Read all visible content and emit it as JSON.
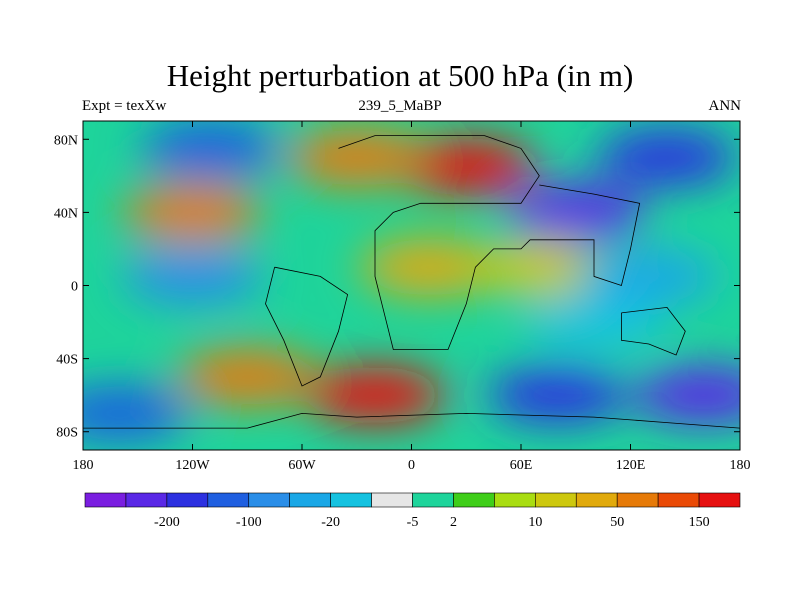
{
  "chart_data": {
    "type": "heatmap",
    "title": "Height perturbation at 500 hPa (in m)",
    "subtitle_left": "Expt = texXw",
    "subtitle_center": "239_5_MaBP",
    "subtitle_right": "ANN",
    "x_range": [
      -180,
      180
    ],
    "y_range": [
      -90,
      90
    ],
    "x_ticks": [
      {
        "value": -180,
        "label": "180"
      },
      {
        "value": -120,
        "label": "120W"
      },
      {
        "value": -60,
        "label": "60W"
      },
      {
        "value": 0,
        "label": "0"
      },
      {
        "value": 60,
        "label": "60E"
      },
      {
        "value": 120,
        "label": "120E"
      },
      {
        "value": 180,
        "label": "180"
      }
    ],
    "y_ticks": [
      {
        "value": 80,
        "label": "80N"
      },
      {
        "value": 40,
        "label": "40N"
      },
      {
        "value": 0,
        "label": "0"
      },
      {
        "value": -40,
        "label": "40S"
      },
      {
        "value": -80,
        "label": "80S"
      }
    ],
    "colorbar": {
      "colors": [
        "#7a1ee0",
        "#5a28e6",
        "#2c30e0",
        "#1f5fe0",
        "#2a8ee8",
        "#1aa7e6",
        "#15c2e0",
        "#e6e6e6",
        "#1ed49b",
        "#3fce1a",
        "#a9dd12",
        "#cdc80e",
        "#e1aa0c",
        "#e67a08",
        "#ea4a06",
        "#e61010"
      ],
      "labels": [
        {
          "after_index": 1,
          "text": "-200"
        },
        {
          "after_index": 3,
          "text": "-100"
        },
        {
          "after_index": 5,
          "text": "-20"
        },
        {
          "after_index": 7,
          "text": "-5"
        },
        {
          "after_index": 8,
          "text": "2"
        },
        {
          "after_index": 10,
          "text": "10"
        },
        {
          "after_index": 12,
          "text": "50"
        },
        {
          "after_index": 14,
          "text": "150"
        }
      ]
    },
    "field_features": [
      {
        "lon": 30,
        "lat": 65,
        "value": 170
      },
      {
        "lon": -30,
        "lat": 70,
        "value": 90
      },
      {
        "lon": -110,
        "lat": 75,
        "value": -90
      },
      {
        "lon": 140,
        "lat": 70,
        "value": -110
      },
      {
        "lon": 90,
        "lat": 40,
        "value": -160
      },
      {
        "lon": -120,
        "lat": 40,
        "value": 60
      },
      {
        "lon": -120,
        "lat": 5,
        "value": -40
      },
      {
        "lon": 10,
        "lat": 10,
        "value": 25
      },
      {
        "lon": 70,
        "lat": 10,
        "value": 12
      },
      {
        "lon": 130,
        "lat": 5,
        "value": -15
      },
      {
        "lon": -90,
        "lat": -50,
        "value": 50
      },
      {
        "lon": -20,
        "lat": -60,
        "value": 160
      },
      {
        "lon": 80,
        "lat": -60,
        "value": -130
      },
      {
        "lon": 160,
        "lat": -60,
        "value": -190
      },
      {
        "lon": -160,
        "lat": -70,
        "value": -80
      },
      {
        "lon": 100,
        "lat": -20,
        "value": -10
      }
    ]
  }
}
